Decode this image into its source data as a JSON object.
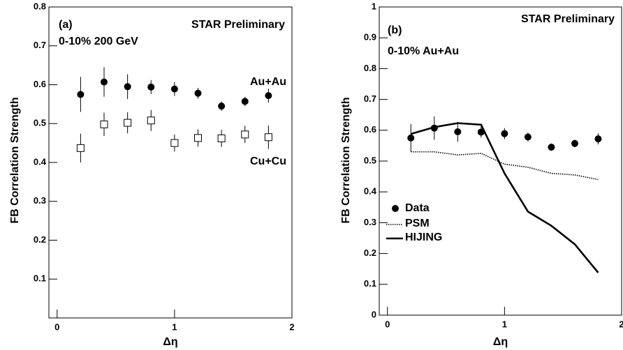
{
  "chart_data": [
    {
      "type": "scatter",
      "annotations": [
        "(a)",
        "STAR Preliminary",
        "0-10%  200 GeV"
      ],
      "y_label": "FB Correlation Strength",
      "x_label": "Δη",
      "x": [
        0.2,
        0.4,
        0.6,
        0.8,
        1.0,
        1.2,
        1.4,
        1.6,
        1.8
      ],
      "series": [
        {
          "name": "Au+Au",
          "color": "#000000",
          "marker": "circle",
          "values": [
            0.575,
            0.607,
            0.595,
            0.594,
            0.589,
            0.578,
            0.545,
            0.557,
            0.572
          ],
          "errors": [
            0.045,
            0.038,
            0.032,
            0.018,
            0.018,
            0.014,
            0.012,
            0.012,
            0.018
          ]
        },
        {
          "name": "Cu+Cu",
          "color": "#000000",
          "marker": "open-square",
          "values": [
            0.437,
            0.498,
            0.502,
            0.508,
            0.45,
            0.463,
            0.462,
            0.472,
            0.465
          ],
          "errors": [
            0.037,
            0.03,
            0.027,
            0.027,
            0.022,
            0.022,
            0.022,
            0.022,
            0.03
          ]
        }
      ],
      "xlim": [
        -0.07,
        2.0
      ],
      "xticks": [
        0,
        1,
        2
      ],
      "ylim": [
        0,
        0.8
      ],
      "yticks": [
        0.1,
        0.2,
        0.3,
        0.4,
        0.5,
        0.6,
        0.7,
        0.8
      ]
    },
    {
      "type": "line",
      "annotations": [
        "(b)",
        "STAR Preliminary",
        "0-10% Au+Au"
      ],
      "y_label": "FB Correlation Strength",
      "x_label": "Δη",
      "x": [
        0.2,
        0.4,
        0.6,
        0.8,
        1.0,
        1.2,
        1.4,
        1.6,
        1.8
      ],
      "series": [
        {
          "name": "Data",
          "color": "#000000",
          "marker": "circle",
          "values": [
            0.575,
            0.607,
            0.595,
            0.594,
            0.589,
            0.578,
            0.545,
            0.557,
            0.572
          ],
          "errors": [
            0.045,
            0.038,
            0.032,
            0.018,
            0.018,
            0.014,
            0.012,
            0.012,
            0.018
          ]
        },
        {
          "name": "PSM",
          "color": "#000000",
          "line_style": "dotted",
          "values": [
            0.53,
            0.53,
            0.52,
            0.525,
            0.49,
            0.48,
            0.46,
            0.455,
            0.44
          ]
        },
        {
          "name": "HIJING",
          "color": "#000000",
          "line_style": "solid",
          "values": [
            0.588,
            0.61,
            0.623,
            0.618,
            0.46,
            0.336,
            0.29,
            0.23,
            0.138
          ]
        }
      ],
      "xlim": [
        -0.07,
        2.0
      ],
      "xticks": [
        0,
        1,
        2
      ],
      "ylim": [
        0,
        1
      ],
      "yticks": [
        0,
        0.1,
        0.2,
        0.3,
        0.4,
        0.5,
        0.6,
        0.7,
        0.8,
        0.9,
        1
      ]
    }
  ]
}
